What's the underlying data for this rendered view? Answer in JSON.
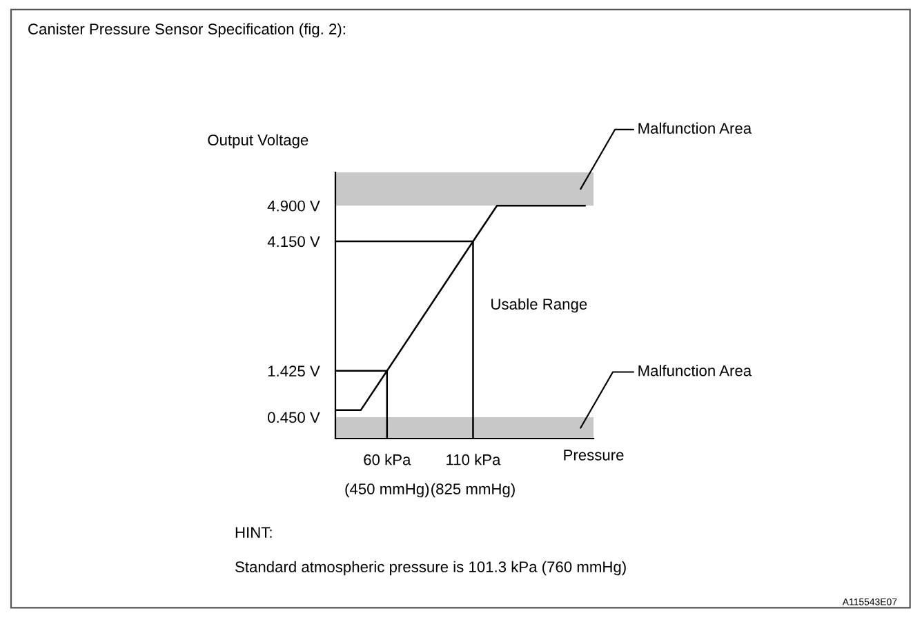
{
  "chart_data": {
    "type": "line",
    "title": "Canister Pressure Sensor Specification (fig. 2):",
    "xlabel": "Pressure",
    "ylabel": "Output Voltage",
    "xlim": [
      30,
      180
    ],
    "xticks": [
      {
        "value": 60,
        "label": "60 kPa"
      },
      {
        "value": 110,
        "label": "110 kPa"
      }
    ],
    "ylim": [
      0,
      5.6
    ],
    "yticks": [
      {
        "value": 0.45,
        "label": "0.450 V"
      },
      {
        "value": 1.425,
        "label": "1.425 V"
      },
      {
        "value": 4.15,
        "label": "4.150 V"
      },
      {
        "value": 4.9,
        "label": "4.900 V"
      }
    ],
    "series": [
      {
        "color": "#000000",
        "x": [
          30,
          44.8,
          60,
          110,
          123.9,
          175
        ],
        "values": [
          0.6,
          0.6,
          1.425,
          4.15,
          4.9,
          4.9
        ]
      },
      {
        "color": "#000000",
        "x": [
          30,
          60,
          60
        ],
        "values": [
          1.425,
          1.425,
          0
        ]
      },
      {
        "color": "#000000",
        "x": [
          30,
          110,
          110
        ],
        "values": [
          4.15,
          4.15,
          0
        ]
      }
    ],
    "bands": [
      {
        "axis": "y",
        "from": 4.9,
        "to": 5.6,
        "label": "Malfunction Area",
        "color": "#c8c8c8"
      },
      {
        "axis": "y",
        "from": 0,
        "to": 0.45,
        "label": "Malfunction Area",
        "color": "#c8c8c8"
      }
    ],
    "annotations": [
      "Usable Range",
      "HINT:",
      "Standard atmospheric pressure is 101.3 kPa (760 mmHg)",
      "A115543E07",
      {
        "text": "(450 mmHg)",
        "x": 60,
        "y": 0
      },
      {
        "text": "(825 mmHg)",
        "x": 110,
        "y": 0
      }
    ],
    "grid": false,
    "legend": false,
    "marker": "none",
    "line_style": "solid"
  }
}
